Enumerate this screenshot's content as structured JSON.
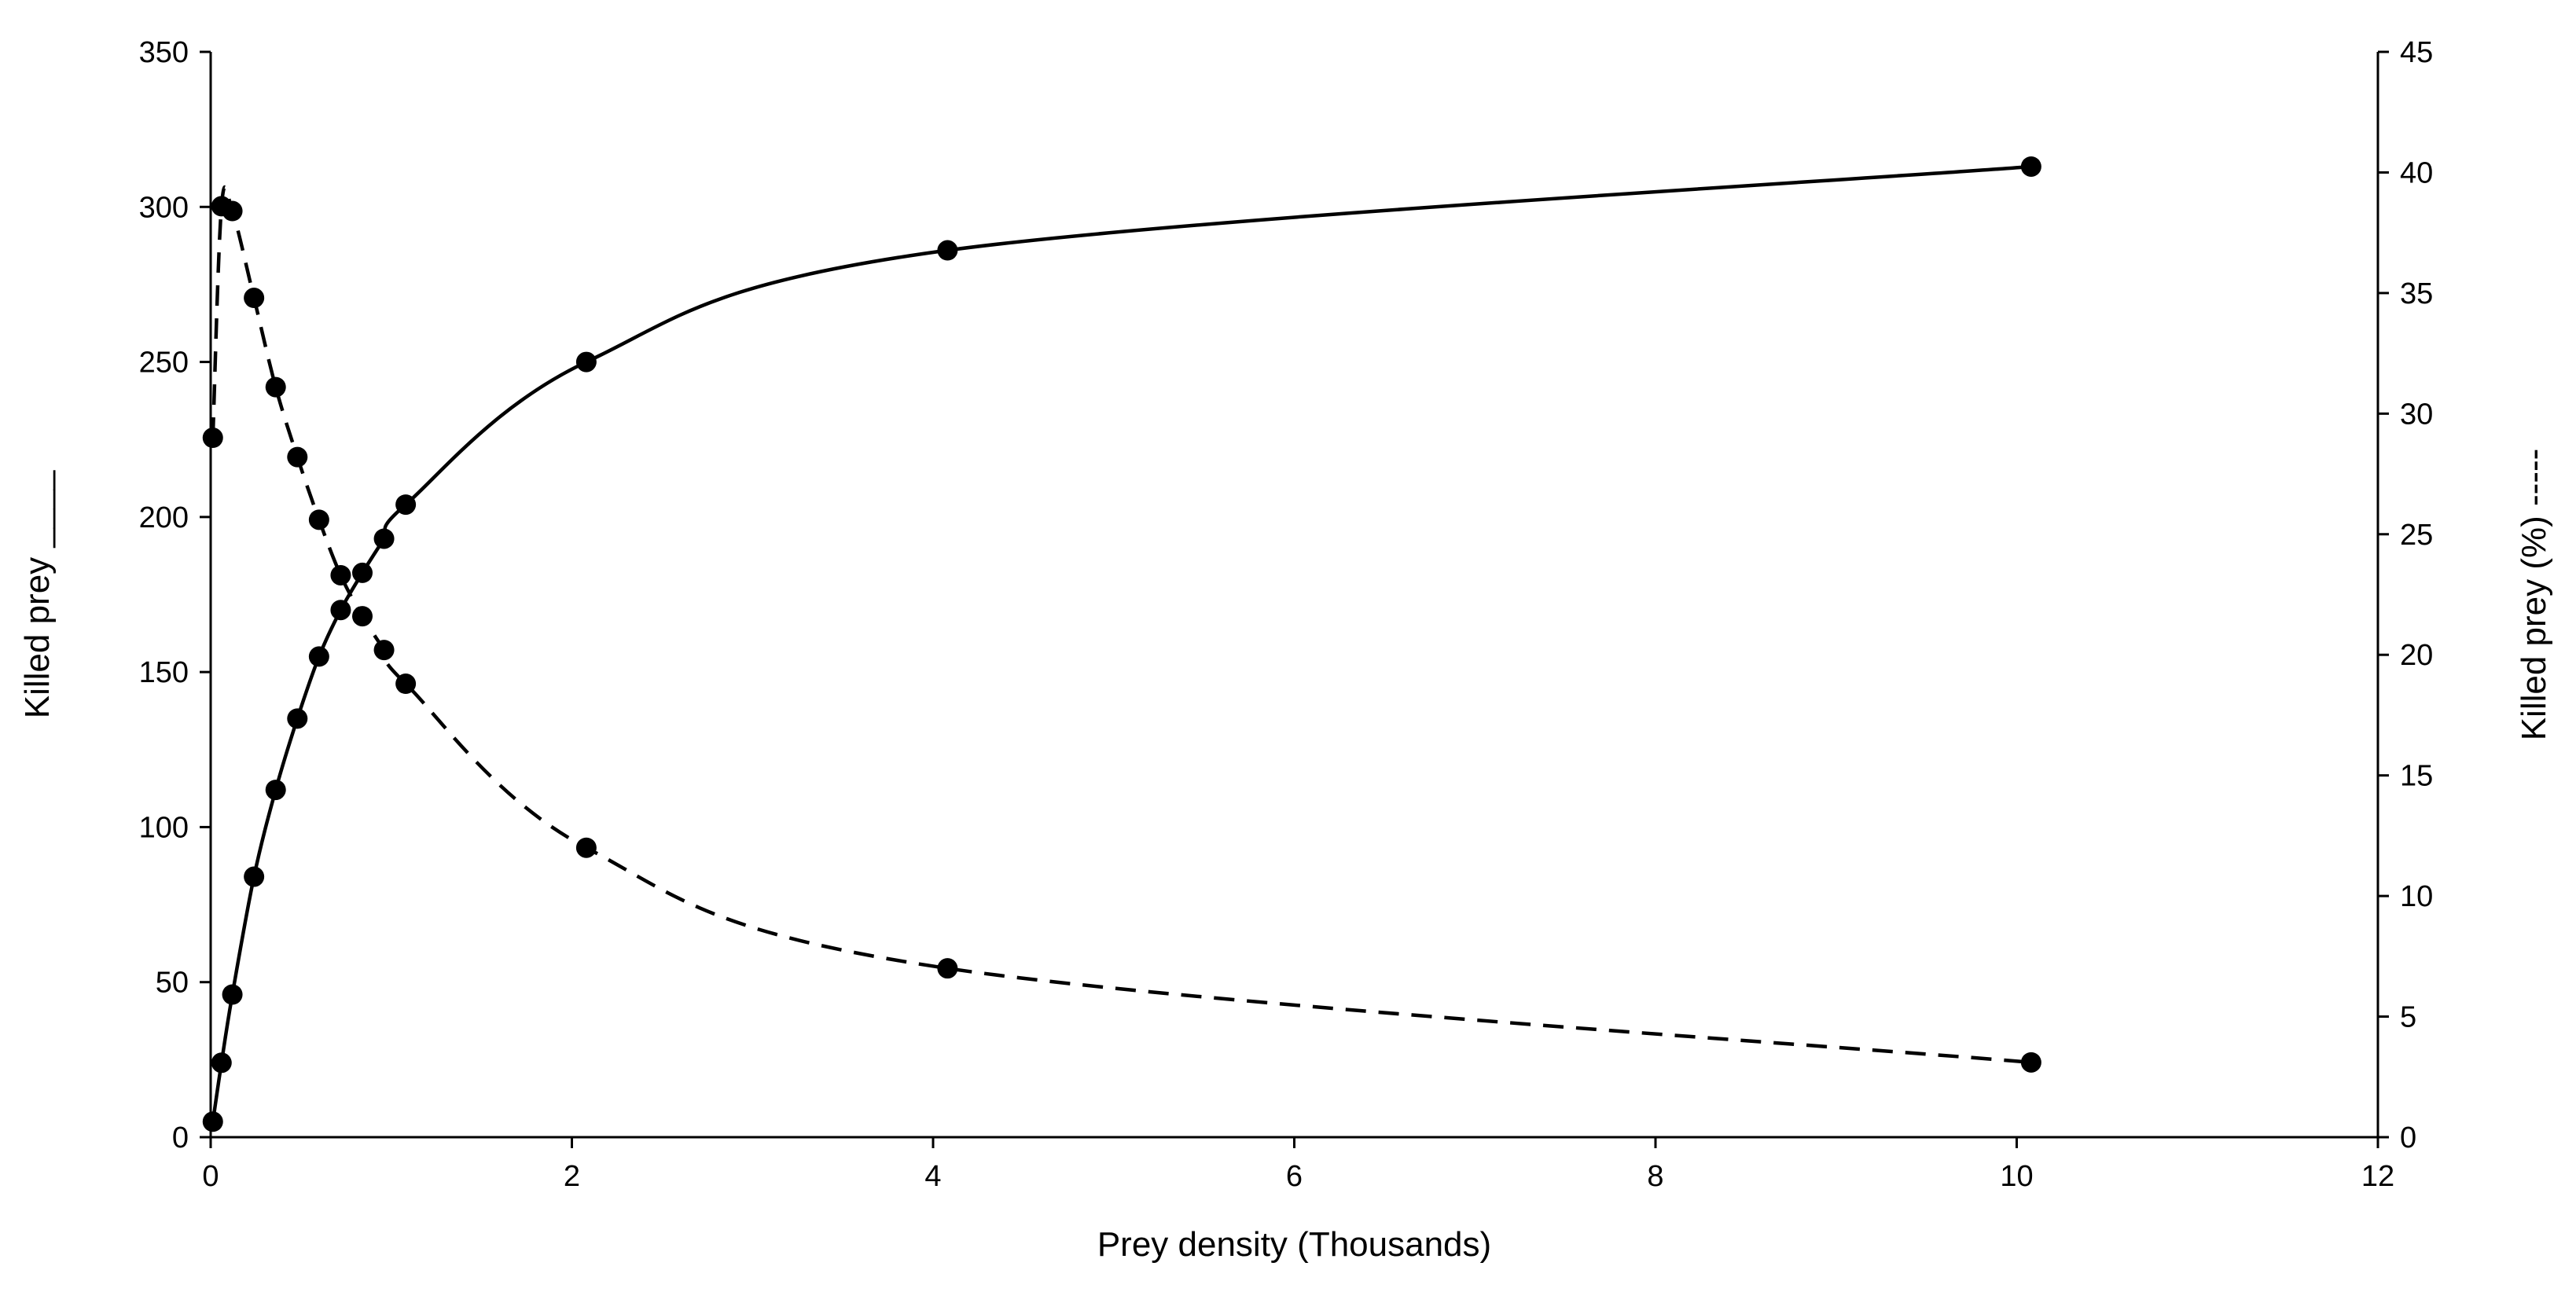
{
  "chart_data": {
    "type": "line",
    "title": "",
    "xlabel": "Prey density (Thousands)",
    "ylabel_left": "Killed prey ____",
    "ylabel_right": "Killed prey (%) -----",
    "xlim": [
      0,
      12
    ],
    "ylim_left": [
      0,
      350
    ],
    "ylim_right": [
      0,
      45
    ],
    "xticks": [
      "0",
      "2",
      "4",
      "6",
      "8",
      "10",
      "12"
    ],
    "yticks_left": [
      "0",
      "50",
      "100",
      "150",
      "200",
      "250",
      "300",
      "350"
    ],
    "yticks_right": [
      "0",
      "5",
      "10",
      "15",
      "20",
      "25",
      "30",
      "35",
      "40",
      "45"
    ],
    "grid": false,
    "series": [
      {
        "name": "Killed prey",
        "axis": "left",
        "line_style": "solid",
        "x": [
          0.012,
          0.06,
          0.12,
          0.24,
          0.36,
          0.48,
          0.6,
          0.72,
          0.84,
          0.96,
          1.08,
          2.08,
          4.08,
          10.08
        ],
        "y": [
          5,
          24,
          46,
          84,
          112,
          135,
          155,
          170,
          182,
          193,
          204,
          250,
          286,
          313
        ]
      },
      {
        "name": "Killed prey (%)",
        "axis": "right",
        "line_style": "dashed",
        "x": [
          0.012,
          0.06,
          0.12,
          0.24,
          0.36,
          0.48,
          0.6,
          0.72,
          0.84,
          0.96,
          1.08,
          2.08,
          4.08,
          10.08
        ],
        "y": [
          29,
          38.6,
          38.4,
          34.8,
          31.1,
          28.2,
          25.6,
          23.3,
          21.6,
          20.2,
          18.8,
          12.0,
          7.0,
          3.1
        ]
      }
    ]
  }
}
